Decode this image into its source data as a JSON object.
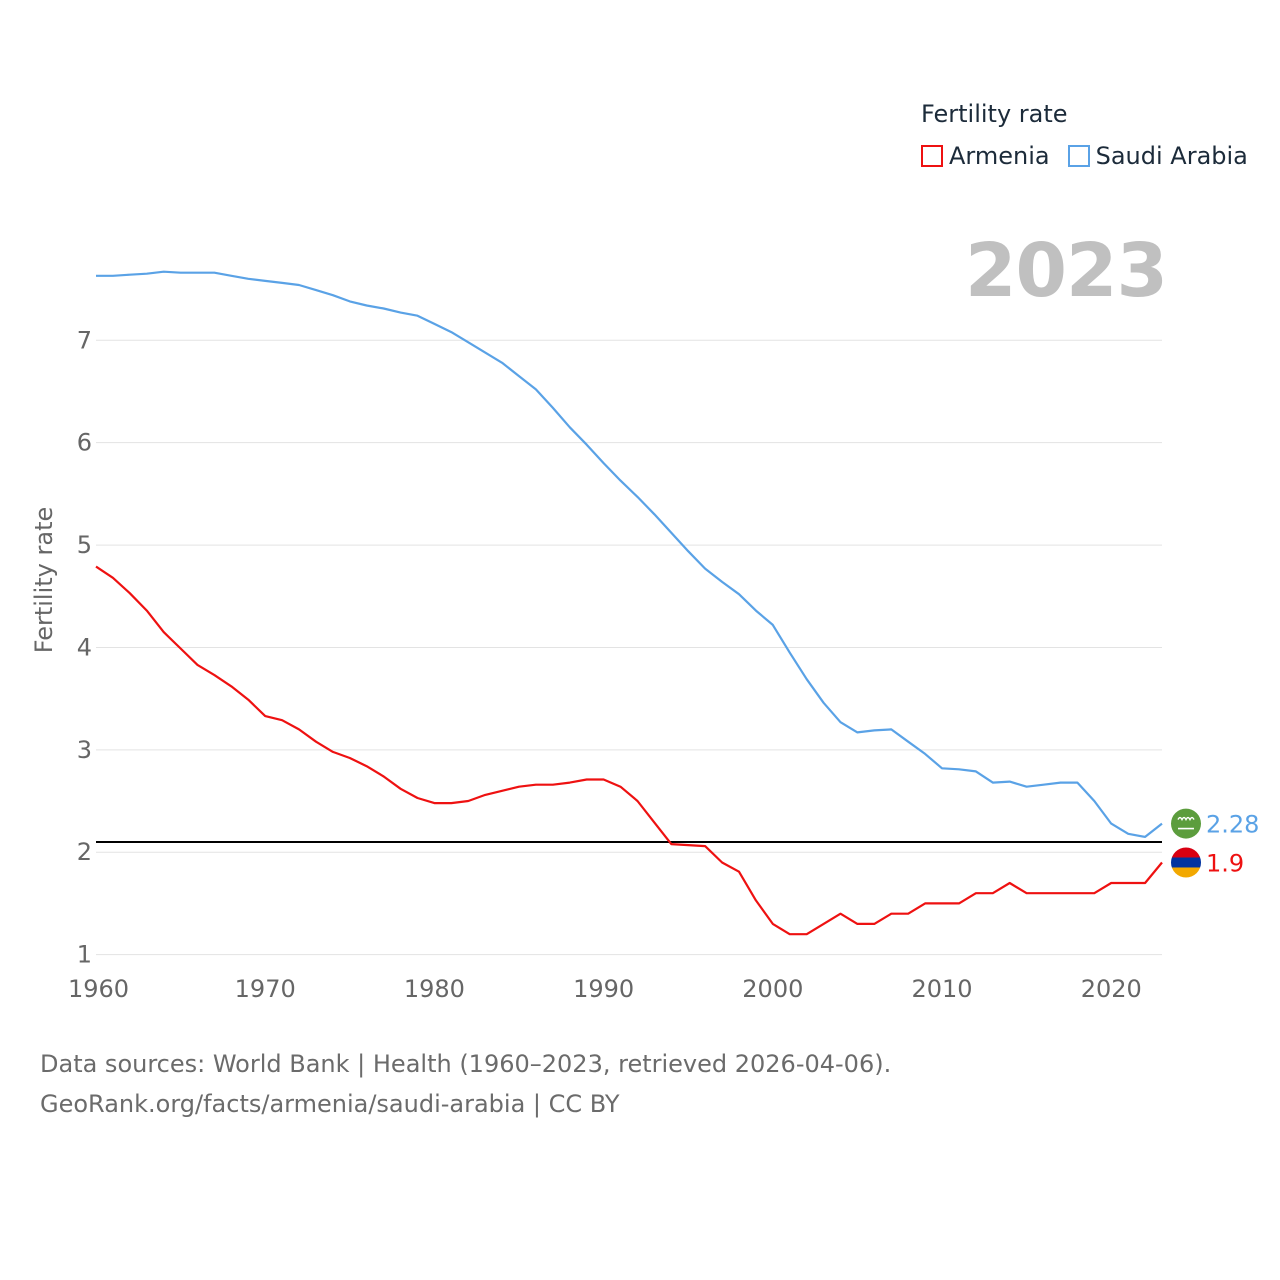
{
  "legend": {
    "title": "Fertility rate",
    "items": [
      {
        "label": "Armenia",
        "color": "#ee1111"
      },
      {
        "label": "Saudi Arabia",
        "color": "#5aa2e6"
      }
    ]
  },
  "year_stamp": "2023",
  "sources": {
    "line1": "Data sources: World Bank | Health (1960–2023, retrieved 2026-04-06).",
    "line2": "GeoRank.org/facts/armenia/saudi-arabia | CC BY"
  },
  "chart_data": {
    "type": "line",
    "title": "",
    "xlabel": "",
    "ylabel": "Fertility rate",
    "xlim": [
      1960,
      2023
    ],
    "ylim": [
      0.85,
      7.95
    ],
    "x_ticks": [
      1960,
      1970,
      1980,
      1990,
      2000,
      2010,
      2020
    ],
    "y_ticks": [
      1,
      2,
      3,
      4,
      5,
      6,
      7
    ],
    "grid": true,
    "reference_line": {
      "y": 2.1,
      "color": "#000000"
    },
    "x": [
      1960,
      1961,
      1962,
      1963,
      1964,
      1965,
      1966,
      1967,
      1968,
      1969,
      1970,
      1971,
      1972,
      1973,
      1974,
      1975,
      1976,
      1977,
      1978,
      1979,
      1980,
      1981,
      1982,
      1983,
      1984,
      1985,
      1986,
      1987,
      1988,
      1989,
      1990,
      1991,
      1992,
      1993,
      1994,
      1995,
      1996,
      1997,
      1998,
      1999,
      2000,
      2001,
      2002,
      2003,
      2004,
      2005,
      2006,
      2007,
      2008,
      2009,
      2010,
      2011,
      2012,
      2013,
      2014,
      2015,
      2016,
      2017,
      2018,
      2019,
      2020,
      2021,
      2022,
      2023
    ],
    "series": [
      {
        "name": "Armenia",
        "color": "#ee1111",
        "end_label": "1.9",
        "values": [
          4.79,
          4.68,
          4.53,
          4.36,
          4.15,
          3.99,
          3.83,
          3.73,
          3.62,
          3.49,
          3.33,
          3.29,
          3.2,
          3.08,
          2.98,
          2.92,
          2.84,
          2.74,
          2.62,
          2.53,
          2.48,
          2.48,
          2.5,
          2.56,
          2.6,
          2.64,
          2.66,
          2.66,
          2.68,
          2.71,
          2.71,
          2.64,
          2.5,
          2.29,
          2.08,
          2.07,
          2.06,
          1.9,
          1.81,
          1.53,
          1.3,
          1.2,
          1.2,
          1.3,
          1.4,
          1.3,
          1.3,
          1.4,
          1.4,
          1.5,
          1.5,
          1.5,
          1.6,
          1.6,
          1.7,
          1.6,
          1.6,
          1.6,
          1.6,
          1.6,
          1.7,
          1.7,
          1.7,
          1.9
        ]
      },
      {
        "name": "Saudi Arabia",
        "color": "#5aa2e6",
        "end_label": "2.28",
        "values": [
          7.63,
          7.63,
          7.64,
          7.65,
          7.67,
          7.66,
          7.66,
          7.66,
          7.63,
          7.6,
          7.58,
          7.56,
          7.54,
          7.49,
          7.44,
          7.38,
          7.34,
          7.31,
          7.27,
          7.24,
          7.16,
          7.08,
          6.98,
          6.88,
          6.78,
          6.65,
          6.52,
          6.34,
          6.15,
          5.98,
          5.8,
          5.63,
          5.47,
          5.3,
          5.12,
          4.94,
          4.77,
          4.64,
          4.52,
          4.36,
          4.22,
          3.95,
          3.69,
          3.46,
          3.27,
          3.17,
          3.19,
          3.2,
          3.08,
          2.96,
          2.82,
          2.81,
          2.79,
          2.68,
          2.69,
          2.64,
          2.66,
          2.68,
          2.68,
          2.5,
          2.28,
          2.18,
          2.15,
          2.28
        ]
      }
    ]
  }
}
